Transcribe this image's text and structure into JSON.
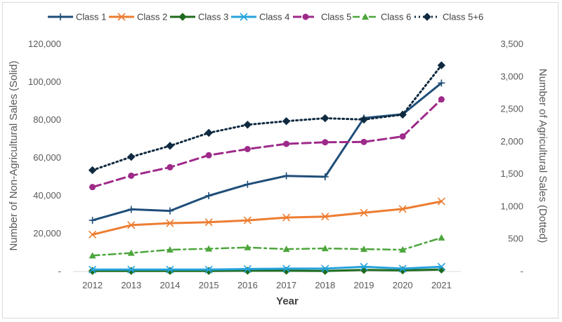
{
  "chart_data": {
    "type": "line",
    "title": "",
    "xlabel": "Year",
    "ylabel_left": "Number of Non-Agricultural Sales (Solid)",
    "ylabel_right": "Number of Agricultural Sales (Dotted)",
    "x": [
      "2012",
      "2013",
      "2014",
      "2015",
      "2016",
      "2017",
      "2018",
      "2019",
      "2020",
      "2021"
    ],
    "ylim_left": [
      0,
      120000
    ],
    "ylim_right": [
      0,
      3500
    ],
    "yticks_left": [
      "-",
      "20,000",
      "40,000",
      "60,000",
      "80,000",
      "100,000",
      "120,000"
    ],
    "yticks_right": [
      "-",
      "500",
      "1,000",
      "1,500",
      "2,000",
      "2,500",
      "3,000",
      "3,500"
    ],
    "grid": false,
    "legend_position": "top",
    "series": [
      {
        "name": "Class 1",
        "axis": "left",
        "color": "#1f4e79",
        "dash": "solid",
        "marker": "plus",
        "values": [
          27000,
          32800,
          32000,
          40000,
          46000,
          50500,
          50000,
          81000,
          83000,
          99500
        ]
      },
      {
        "name": "Class 2",
        "axis": "left",
        "color": "#ed7d31",
        "dash": "solid",
        "marker": "x",
        "values": [
          19500,
          24500,
          25500,
          26000,
          27000,
          28500,
          29000,
          31000,
          33000,
          37000
        ]
      },
      {
        "name": "Class 3",
        "axis": "left",
        "color": "#1e6b1e",
        "dash": "solid",
        "marker": "diamond",
        "values": [
          300,
          300,
          300,
          300,
          400,
          400,
          300,
          800,
          600,
          1000
        ]
      },
      {
        "name": "Class 4",
        "axis": "left",
        "color": "#26a3dd",
        "dash": "solid",
        "marker": "x",
        "values": [
          1000,
          1000,
          1000,
          1000,
          1300,
          1500,
          1500,
          2500,
          1500,
          2500
        ]
      },
      {
        "name": "Class 5",
        "axis": "right",
        "color": "#9e2a8a",
        "dash": "dashed",
        "marker": "circle",
        "values": [
          1300,
          1475,
          1605,
          1790,
          1885,
          1965,
          1990,
          1995,
          2080,
          2650
        ]
      },
      {
        "name": "Class 6",
        "axis": "right",
        "color": "#4ca63c",
        "dash": "dashdot",
        "marker": "triangle",
        "values": [
          245,
          285,
          335,
          350,
          370,
          345,
          355,
          345,
          335,
          520
        ]
      },
      {
        "name": "Class 5+6",
        "axis": "right",
        "color": "#0f2a40",
        "dash": "dotted",
        "marker": "diamond",
        "values": [
          1560,
          1765,
          1935,
          2135,
          2260,
          2315,
          2360,
          2340,
          2415,
          3175
        ]
      }
    ]
  }
}
